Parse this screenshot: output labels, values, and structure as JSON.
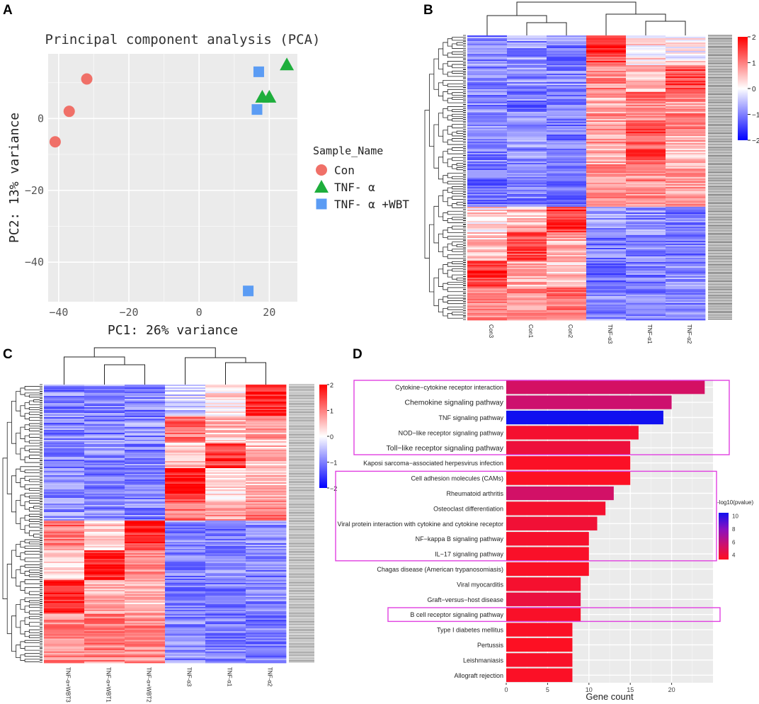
{
  "panels": {
    "A": "A",
    "B": "B",
    "C": "C",
    "D": "D"
  },
  "colors": {
    "con": "#f07068",
    "tnf": "#1eae3c",
    "wbt": "#5b9cf4",
    "grid_bg": "#ebebeb",
    "heat_high": "#ff0000",
    "heat_mid": "#ffffff",
    "heat_low": "#0000ff",
    "box": "#e040e0"
  },
  "chart_data": [
    {
      "type": "scatter",
      "panel": "A",
      "title": "Principal component analysis (PCA)",
      "xlabel": "PC1: 26% variance",
      "ylabel": "PC2: 13% variance",
      "xlim": [
        -43,
        28
      ],
      "ylim": [
        -51,
        18
      ],
      "xticks": [
        -40,
        -20,
        0,
        20
      ],
      "yticks": [
        -40,
        -20,
        0
      ],
      "legend_title": "Sample_Name",
      "series": [
        {
          "name": "Con",
          "shape": "circle",
          "points": [
            [
              -41,
              -6.5
            ],
            [
              -37,
              2
            ],
            [
              -32,
              11
            ]
          ]
        },
        {
          "name": "TNF- α",
          "shape": "triangle",
          "points": [
            [
              25,
              15
            ],
            [
              18,
              6
            ],
            [
              20,
              6
            ]
          ]
        },
        {
          "name": "TNF- α +WBT",
          "shape": "square",
          "points": [
            [
              17,
              13
            ],
            [
              16.5,
              2.5
            ],
            [
              14,
              -48
            ]
          ]
        }
      ]
    },
    {
      "type": "heatmap",
      "panel": "B",
      "columns": [
        "Con3",
        "Con1",
        "Con2",
        "TNF-α3",
        "TNF-α1",
        "TNF-α2"
      ],
      "colorbar_ticks": [
        "2",
        "1",
        "0",
        "−1",
        "−2"
      ],
      "color_range": [
        -2,
        2
      ]
    },
    {
      "type": "heatmap",
      "panel": "C",
      "columns": [
        "TNF-α+WBT3",
        "TNF-α+WBT1",
        "TNF-α+WBT2",
        "TNF-α3",
        "TNF-α1",
        "TNF-α2"
      ],
      "colorbar_ticks": [
        "2",
        "1",
        "0",
        "−1",
        "−2"
      ],
      "color_range": [
        -2,
        2
      ]
    },
    {
      "type": "bar",
      "panel": "D",
      "orientation": "horizontal",
      "xlabel": "Gene count",
      "xlim": [
        0,
        25
      ],
      "xticks": [
        0,
        5,
        10,
        15,
        20
      ],
      "legend_title": "-log10(pvalue)",
      "legend_ticks": [
        10,
        8,
        6,
        4
      ],
      "categories": [
        "Cytokine−cytokine receptor interaction",
        "Chemokine signaling pathway",
        "TNF signaling pathway",
        "NOD−like receptor signaling pathway",
        "Toll−like receptor signaling pathway",
        "Kaposi sarcoma−associated herpesvirus infection",
        "Cell adhesion molecules (CAMs)",
        "Rheumatoid arthritis",
        "Osteoclast differentiation",
        "Viral protein interaction with cytokine and cytokine receptor",
        "NF−kappa B signaling pathway",
        "IL−17 signaling pathway",
        "Chagas disease (American trypanosomiasis)",
        "Viral myocarditis",
        "Graft−versus−host disease",
        "B cell receptor signaling pathway",
        "Type I diabetes mellitus",
        "Pertussis",
        "Leishmaniasis",
        "Allograft rejection"
      ],
      "values": [
        24,
        20,
        19,
        16,
        15,
        15,
        15,
        13,
        12,
        11,
        10,
        10,
        10,
        9,
        9,
        9,
        8,
        8,
        8,
        8
      ],
      "neglog10p": [
        5.5,
        5.8,
        10.5,
        3.8,
        4.2,
        3.5,
        3.4,
        5.6,
        3.8,
        4.0,
        3.7,
        3.6,
        3.5,
        3.8,
        4.3,
        3.6,
        3.5,
        3.4,
        3.6,
        3.5
      ],
      "highlight_groups": [
        [
          0,
          4
        ],
        [
          6,
          11
        ],
        [
          15,
          15
        ]
      ]
    }
  ]
}
